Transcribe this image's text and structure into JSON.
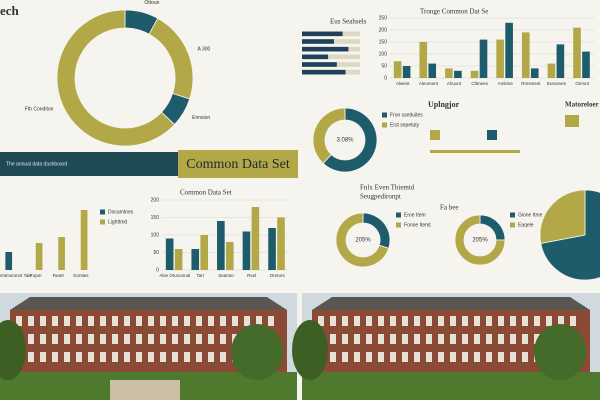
{
  "header": {
    "title": "ech"
  },
  "banner": {
    "title": "Common Data Set",
    "note": "The annual data dashboard"
  },
  "panel": {
    "title": "Uplngjor"
  },
  "side": {
    "title": "Matoreloer"
  },
  "chart_data": [
    {
      "type": "donut",
      "values": [
        8,
        22,
        7,
        63
      ],
      "colors": [
        "#1f5c6b",
        "#b3a848",
        "#1f5c6b",
        "#b3a848"
      ],
      "labels": [
        "Ottoun",
        "A 300",
        "Ennsion",
        "Fth Conditon"
      ]
    },
    {
      "type": "bar",
      "title": "Tronge Common Dat Se",
      "categories": [
        "Alwent",
        "Aleoment",
        "Ahuont",
        "Cltmees",
        "Amkme",
        "Rmsment",
        "Eunorves",
        "Onmnt"
      ],
      "series": [
        {
          "name": "Olive",
          "color": "#b3a848",
          "values": [
            70,
            150,
            40,
            30,
            160,
            190,
            60,
            210
          ]
        },
        {
          "name": "Teal",
          "color": "#1f5c6b",
          "values": [
            50,
            60,
            30,
            160,
            230,
            40,
            140,
            110
          ]
        }
      ],
      "ylim": [
        0,
        250
      ],
      "yticks": [
        0,
        50,
        100,
        150,
        200,
        250
      ],
      "grid": true
    },
    {
      "type": "bar",
      "orientation": "horizontal",
      "title": "Eus Seahsels",
      "values": [
        70,
        55,
        80,
        45,
        60,
        75
      ],
      "color": "#1f3f5b",
      "xlim": [
        0,
        100
      ]
    },
    {
      "type": "donut",
      "center_label": "3.08%",
      "values": [
        62,
        38
      ],
      "colors": [
        "#1f5c6b",
        "#b3a848"
      ],
      "labels": [
        "Fron sseduites",
        "Erst sepetuty"
      ]
    },
    {
      "type": "bar",
      "categories": [
        "Alnmtmonmnt Tale",
        "Fopm",
        "Reart",
        "Gnnties"
      ],
      "series": [
        {
          "name": "Docamtnes",
          "color": "#1f5c6b",
          "values": [
            30,
            null,
            null,
            null
          ]
        },
        {
          "name": "Lighttmd",
          "color": "#b3a848",
          "values": [
            null,
            45,
            55,
            100
          ]
        }
      ],
      "ylim": [
        0,
        120
      ]
    },
    {
      "type": "bar",
      "title": "Common Data Set",
      "categories": [
        "Alse Otunonnal",
        "Tarr",
        "Seamto",
        "Rsel",
        "Oretors"
      ],
      "series": [
        {
          "name": "Teal",
          "color": "#1f5c6b",
          "values": [
            90,
            60,
            140,
            110,
            120
          ]
        },
        {
          "name": "Olive",
          "color": "#b3a848",
          "values": [
            60,
            100,
            80,
            180,
            150
          ]
        }
      ],
      "ylim": [
        0,
        200
      ],
      "yticks": [
        0,
        50,
        100,
        150,
        200
      ],
      "grid": true
    },
    {
      "type": "donut",
      "title": "Fnlx Even Thiemtd",
      "subtitle": "Seugpedironpt",
      "center_label": "205%",
      "values": [
        30,
        70
      ],
      "colors": [
        "#1f5c6b",
        "#b3a848"
      ],
      "labels": [
        "Eroe Item",
        "Fonne Itemt"
      ]
    },
    {
      "type": "donut",
      "title": "Fa bee",
      "center_label": "205%",
      "values": [
        25,
        75
      ],
      "colors": [
        "#1f5c6b",
        "#b3a848"
      ],
      "labels": [
        "Gione Itme",
        "Eaqele"
      ]
    },
    {
      "type": "pie",
      "values": [
        72,
        28
      ],
      "colors": [
        "#1f5c6b",
        "#b3a848"
      ]
    }
  ]
}
